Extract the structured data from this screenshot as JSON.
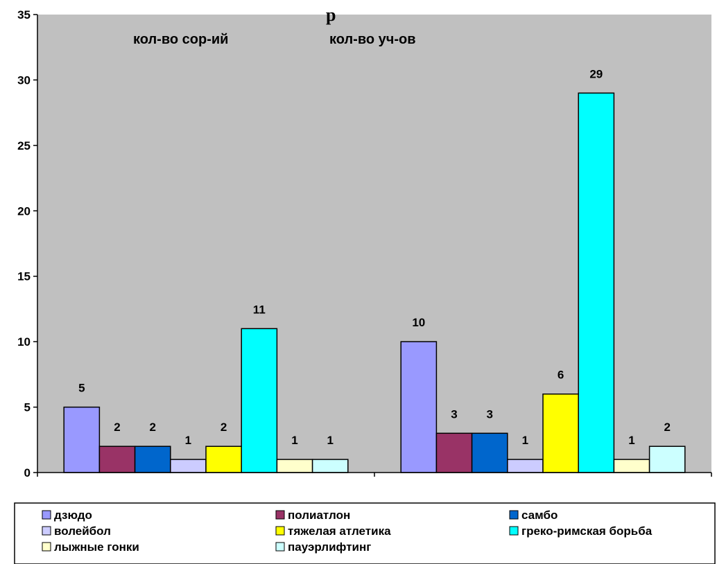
{
  "chart_data": {
    "type": "bar",
    "title": "р",
    "categories": [
      "кол-во сор-ий",
      "кол-во уч-ов"
    ],
    "series": [
      {
        "name": "дзюдо",
        "color": "#9999ff",
        "values": [
          5,
          10
        ]
      },
      {
        "name": "полиатлон",
        "color": "#993366",
        "values": [
          2,
          3
        ]
      },
      {
        "name": "самбо",
        "color": "#0066cc",
        "values": [
          2,
          3
        ]
      },
      {
        "name": "волейбол",
        "color": "#ccccff",
        "values": [
          1,
          1
        ]
      },
      {
        "name": "тяжелая атлетика",
        "color": "#ffff00",
        "values": [
          2,
          6
        ]
      },
      {
        "name": "греко-римская борьба",
        "color": "#00ffff",
        "values": [
          11,
          29
        ]
      },
      {
        "name": "лыжные гонки",
        "color": "#ffffcc",
        "values": [
          1,
          1
        ]
      },
      {
        "name": "пауэрлифтинг",
        "color": "#ccffff",
        "values": [
          1,
          2
        ]
      }
    ],
    "ylim": [
      0,
      35
    ],
    "yticks": [
      0,
      5,
      10,
      15,
      20,
      25,
      30,
      35
    ],
    "plot_background": "#c0c0c0",
    "grid": false,
    "legend_position": "bottom"
  }
}
